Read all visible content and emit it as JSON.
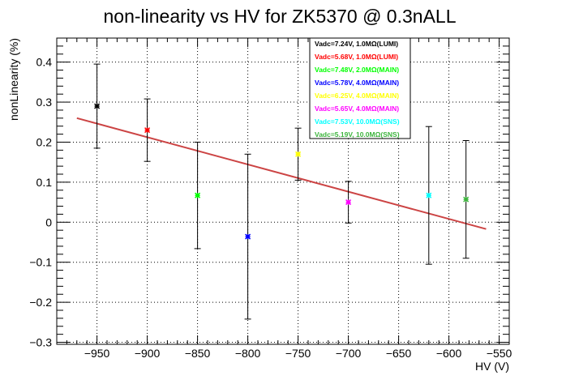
{
  "chart_data": {
    "type": "scatter",
    "title": "non-linearity vs HV for ZK5370 @ 0.3nALL",
    "xlabel": "HV (V)",
    "ylabel": "nonLinearity (%)",
    "xlim": [
      -990,
      -540
    ],
    "ylim": [
      -0.305,
      0.46
    ],
    "x_ticks": [
      -950,
      -900,
      -850,
      -800,
      -750,
      -700,
      -650,
      -600,
      -550
    ],
    "y_ticks": [
      -0.3,
      -0.2,
      -0.1,
      0,
      0.1,
      0.2,
      0.3,
      0.4
    ],
    "x_tick_labels": [
      "−950",
      "−900",
      "−850",
      "−800",
      "−750",
      "−700",
      "−650",
      "−600",
      "−550"
    ],
    "y_tick_labels": [
      "−0.3",
      "−0.2",
      "−0.1",
      "0",
      "0.1",
      "0.2",
      "0.3",
      "0.4"
    ],
    "grid": true,
    "legend_position": "top-center",
    "series": [
      {
        "name": "Vadc=7.24V, 1.0MΩ(LUMI)",
        "color": "#000000",
        "x": -950,
        "y": 0.29,
        "err": 0.105
      },
      {
        "name": "Vadc=5.68V, 1.0MΩ(LUMI)",
        "color": "#ff0000",
        "x": -900,
        "y": 0.23,
        "err": 0.078
      },
      {
        "name": "Vadc=7.48V, 2.0MΩ(MAIN)",
        "color": "#00ff00",
        "x": -850,
        "y": 0.067,
        "err": 0.133
      },
      {
        "name": "Vadc=5.78V, 4.0MΩ(MAIN)",
        "color": "#0000ff",
        "x": -800,
        "y": -0.036,
        "err": 0.206
      },
      {
        "name": "Vadc=6.25V, 4.0MΩ(MAIN)",
        "color": "#ffff00",
        "x": -750,
        "y": 0.17,
        "err": 0.065
      },
      {
        "name": "Vadc=5.65V, 4.0MΩ(MAIN)",
        "color": "#ff00ff",
        "x": -700,
        "y": 0.05,
        "err": 0.052
      },
      {
        "name": "Vadc=7.53V, 10.0MΩ(SNS)",
        "color": "#00ffff",
        "x": -620,
        "y": 0.067,
        "err": 0.172
      },
      {
        "name": "Vadc=5.19V, 10.0MΩ(SNS)",
        "color": "#3cb43c",
        "x": -583,
        "y": 0.057,
        "err": 0.147
      }
    ],
    "fit_line": {
      "color": "#cc4444",
      "x": [
        -970,
        -563
      ],
      "y": [
        0.26,
        -0.017
      ]
    }
  }
}
